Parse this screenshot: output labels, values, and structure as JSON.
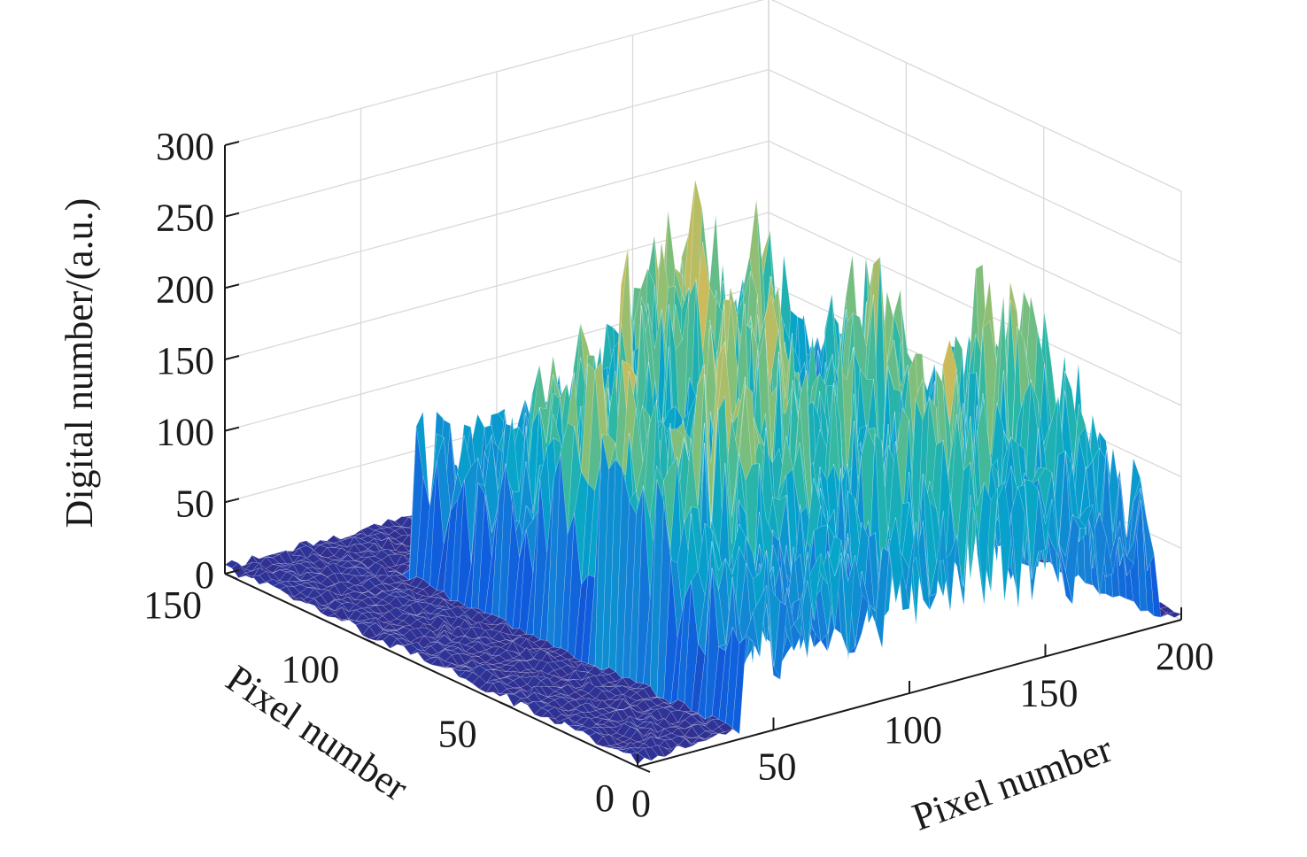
{
  "chart_data": {
    "type": "surface3d",
    "title": "",
    "xlabel": "Pixel number",
    "ylabel": "Pixel number",
    "zlabel": "Digital number/(a.u.)",
    "xlim": [
      0,
      200
    ],
    "ylim": [
      0,
      150
    ],
    "zlim": [
      0,
      300
    ],
    "x_ticks": [
      0,
      50,
      100,
      150,
      200
    ],
    "y_ticks": [
      0,
      50,
      100,
      150
    ],
    "z_ticks": [
      0,
      50,
      100,
      150,
      200,
      250,
      300
    ],
    "x_tick_labels": [
      "0",
      "50",
      "100",
      "150",
      "200"
    ],
    "y_tick_labels": [
      "0",
      "50",
      "100",
      "150"
    ],
    "z_tick_labels": [
      "0",
      "50",
      "100",
      "150",
      "200",
      "250",
      "300"
    ],
    "grid": true,
    "colormap": "parula",
    "colormap_stops": [
      "#352a87",
      "#0f5cdd",
      "#1481d6",
      "#06a4ca",
      "#2eb7a4",
      "#87bf77",
      "#d1bb59",
      "#fec832",
      "#f9fb0e"
    ],
    "background_level": 5,
    "active_region": {
      "x": [
        40,
        190
      ],
      "y": [
        0,
        120
      ]
    },
    "peak_level": 265
  }
}
